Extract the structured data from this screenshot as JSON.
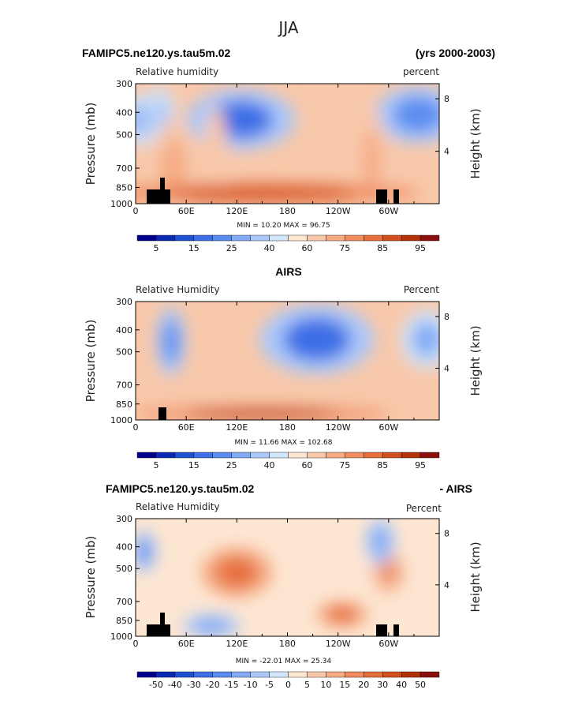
{
  "page_title": "JJA",
  "chart_data": [
    {
      "type": "heatmap",
      "title_left": "FAMIPC5.ne120.ys.tau5m.02",
      "title_right": "(yrs 2000-2003)",
      "variable_label": "Relative humidity",
      "units_label": "percent",
      "xlabel": "",
      "ylabel": "Pressure (mb)",
      "ylabel_right": "Height (km)",
      "x_ticks": [
        "0",
        "60E",
        "120E",
        "180",
        "120W",
        "60W"
      ],
      "x_tick_values": [
        0,
        60,
        120,
        180,
        240,
        300
      ],
      "xlim": [
        0,
        360
      ],
      "y_ticks": [
        "300",
        "400",
        "500",
        "700",
        "850",
        "1000"
      ],
      "y_tick_values": [
        300,
        400,
        500,
        700,
        850,
        1000
      ],
      "ylim": [
        1000,
        300
      ],
      "height_ticks": [
        "8",
        "4"
      ],
      "height_tick_values": [
        8,
        4
      ],
      "min_max_text": "MIN =   10.20   MAX =   96.75",
      "min": 10.2,
      "max": 96.75,
      "colorbar_labels": [
        "5",
        "15",
        "25",
        "40",
        "60",
        "75",
        "85",
        "95"
      ],
      "colorbar_colors": [
        "#00008c",
        "#0a28b4",
        "#1e50d2",
        "#3c6ee6",
        "#5a8cf0",
        "#82aaf5",
        "#aac8fa",
        "#d2e6fc",
        "#fde6d2",
        "#f8c8aa",
        "#f5aa82",
        "#f08c5f",
        "#e66e3c",
        "#d2501e",
        "#b4320a",
        "#8c0f0f"
      ],
      "colorbar_levels": [
        5,
        10,
        15,
        20,
        25,
        30,
        40,
        50,
        60,
        70,
        75,
        80,
        85,
        90,
        95
      ],
      "features": [
        {
          "lon": 125,
          "p": 430,
          "value": 18,
          "rx": 38,
          "rp": 90
        },
        {
          "lon": 335,
          "p": 410,
          "value": 20,
          "rx": 30,
          "rp": 80
        },
        {
          "lon": 5,
          "p": 430,
          "value": 26,
          "rx": 10,
          "rp": 80
        },
        {
          "lon": 30,
          "p": 420,
          "value": 30,
          "rx": 10,
          "rp": 90
        },
        {
          "lon": 95,
          "p": 600,
          "value": 65,
          "rx": 8,
          "rp": 200
        },
        {
          "lon": 45,
          "p": 700,
          "value": 70,
          "rx": 15,
          "rp": 250
        },
        {
          "lon": 280,
          "p": 650,
          "value": 72,
          "rx": 10,
          "rp": 250
        },
        {
          "lon": 150,
          "p": 900,
          "value": 88,
          "rx": 110,
          "rp": 60
        }
      ]
    },
    {
      "type": "heatmap",
      "title_center": "AIRS",
      "variable_label": "Relative Humidity",
      "units_label": "Percent",
      "xlabel": "",
      "ylabel": "Pressure (mb)",
      "ylabel_right": "Height (km)",
      "x_ticks": [
        "0",
        "60E",
        "120E",
        "180",
        "120W",
        "60W"
      ],
      "x_tick_values": [
        0,
        60,
        120,
        180,
        240,
        300
      ],
      "xlim": [
        0,
        360
      ],
      "y_ticks": [
        "300",
        "400",
        "500",
        "700",
        "850",
        "1000"
      ],
      "y_tick_values": [
        300,
        400,
        500,
        700,
        850,
        1000
      ],
      "ylim": [
        1000,
        300
      ],
      "height_ticks": [
        "8",
        "4"
      ],
      "height_tick_values": [
        8,
        4
      ],
      "min_max_text": "MIN =   11.66   MAX =  102.68",
      "min": 11.66,
      "max": 102.68,
      "colorbar_labels": [
        "5",
        "15",
        "25",
        "40",
        "60",
        "75",
        "85",
        "95"
      ],
      "colorbar_colors": [
        "#00008c",
        "#0a28b4",
        "#1e50d2",
        "#3c6ee6",
        "#5a8cf0",
        "#82aaf5",
        "#aac8fa",
        "#d2e6fc",
        "#fde6d2",
        "#f8c8aa",
        "#f5aa82",
        "#f08c5f",
        "#e66e3c",
        "#d2501e",
        "#b4320a",
        "#8c0f0f"
      ],
      "colorbar_levels": [
        5,
        10,
        15,
        20,
        25,
        30,
        40,
        50,
        60,
        70,
        75,
        80,
        85,
        90,
        95
      ],
      "features": [
        {
          "lon": 215,
          "p": 440,
          "value": 16,
          "rx": 40,
          "rp": 110
        },
        {
          "lon": 42,
          "p": 450,
          "value": 20,
          "rx": 10,
          "rp": 110
        },
        {
          "lon": 345,
          "p": 440,
          "value": 25,
          "rx": 18,
          "rp": 90
        },
        {
          "lon": 150,
          "p": 940,
          "value": 92,
          "rx": 90,
          "rp": 40
        }
      ]
    },
    {
      "type": "heatmap",
      "title_left": "FAMIPC5.ne120.ys.tau5m.02",
      "title_right": "- AIRS",
      "variable_label": "Relative Humidity",
      "units_label": "Percent",
      "xlabel": "",
      "ylabel": "Pressure (mb)",
      "ylabel_right": "Height (km)",
      "x_ticks": [
        "0",
        "60E",
        "120E",
        "180",
        "120W",
        "60W"
      ],
      "x_tick_values": [
        0,
        60,
        120,
        180,
        240,
        300
      ],
      "xlim": [
        0,
        360
      ],
      "y_ticks": [
        "300",
        "400",
        "500",
        "700",
        "850",
        "1000"
      ],
      "y_tick_values": [
        300,
        400,
        500,
        700,
        850,
        1000
      ],
      "ylim": [
        1000,
        300
      ],
      "height_ticks": [
        "8",
        "4"
      ],
      "height_tick_values": [
        8,
        4
      ],
      "min_max_text": "MIN =  -22.01   MAX =   25.34",
      "min": -22.01,
      "max": 25.34,
      "colorbar_labels": [
        "-50",
        "-40",
        "-30",
        "-20",
        "-15",
        "-10",
        "-5",
        "0",
        "5",
        "10",
        "15",
        "20",
        "30",
        "40",
        "50"
      ],
      "colorbar_colors": [
        "#00008c",
        "#0a28b4",
        "#1e50d2",
        "#3c6ee6",
        "#5a8cf0",
        "#82aaf5",
        "#aac8fa",
        "#d2e6fc",
        "#fde6d2",
        "#f8c8aa",
        "#f5aa82",
        "#f08c5f",
        "#e66e3c",
        "#d2501e",
        "#b4320a",
        "#8c0f0f"
      ],
      "colorbar_levels": [
        -50,
        -40,
        -30,
        -20,
        -15,
        -10,
        -5,
        0,
        5,
        10,
        15,
        20,
        30,
        40,
        50
      ],
      "features": [
        {
          "lon": 120,
          "p": 520,
          "value": 20,
          "rx": 25,
          "rp": 90
        },
        {
          "lon": 245,
          "p": 800,
          "value": 22,
          "rx": 18,
          "rp": 70
        },
        {
          "lon": 300,
          "p": 520,
          "value": 18,
          "rx": 12,
          "rp": 80
        },
        {
          "lon": 10,
          "p": 420,
          "value": -18,
          "rx": 8,
          "rp": 60
        },
        {
          "lon": 90,
          "p": 900,
          "value": -15,
          "rx": 20,
          "rp": 70
        },
        {
          "lon": 290,
          "p": 380,
          "value": -12,
          "rx": 10,
          "rp": 60
        }
      ]
    }
  ]
}
